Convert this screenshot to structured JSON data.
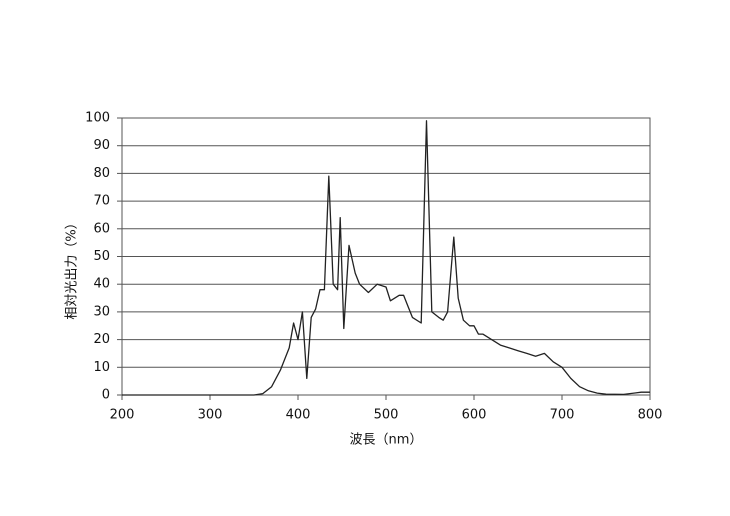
{
  "chart_data": {
    "type": "line",
    "xlabel": "波長（nm）",
    "ylabel": "相対光出力（%）",
    "color": "#222222",
    "grid": true,
    "x": [
      200,
      250,
      300,
      350,
      360,
      370,
      380,
      390,
      395,
      400,
      405,
      410,
      415,
      420,
      425,
      430,
      435,
      440,
      445,
      448,
      452,
      458,
      465,
      470,
      480,
      490,
      500,
      505,
      515,
      520,
      525,
      530,
      540,
      546,
      552,
      560,
      565,
      570,
      577,
      582,
      588,
      595,
      600,
      605,
      610,
      620,
      630,
      640,
      650,
      660,
      670,
      680,
      690,
      700,
      710,
      720,
      730,
      740,
      750,
      770,
      790,
      800
    ],
    "values": [
      0,
      0,
      0,
      0,
      0.5,
      3,
      9,
      17,
      26,
      20,
      30,
      6,
      28,
      31,
      38,
      38,
      79,
      40,
      38,
      64,
      24,
      54,
      44,
      40,
      37,
      40,
      39,
      34,
      36,
      36,
      32,
      28,
      26,
      99,
      30,
      28,
      27,
      30,
      57,
      35,
      27,
      25,
      25,
      22,
      22,
      20,
      18,
      17,
      16,
      15,
      14,
      15,
      12,
      10,
      6,
      3,
      1.5,
      0.7,
      0.3,
      0.2,
      1,
      1
    ],
    "xlim": [
      200,
      800
    ],
    "xticks": [
      200,
      300,
      400,
      500,
      600,
      700,
      800
    ],
    "ylim": [
      0,
      100
    ],
    "yticks": [
      0,
      10,
      20,
      30,
      40,
      50,
      60,
      70,
      80,
      90,
      100
    ]
  }
}
